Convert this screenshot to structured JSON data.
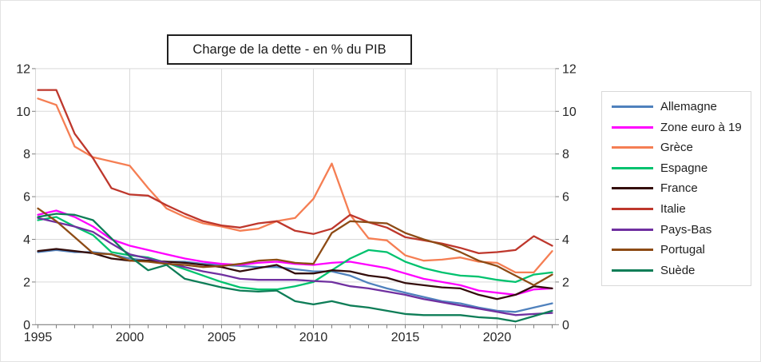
{
  "chart": {
    "title": "Charge de la dette - en % du PIB"
  },
  "chart_data": {
    "type": "line",
    "title": "Charge de la dette - en % du PIB",
    "x": [
      1995,
      1996,
      1997,
      1998,
      1999,
      2000,
      2001,
      2002,
      2003,
      2004,
      2005,
      2006,
      2007,
      2008,
      2009,
      2010,
      2011,
      2012,
      2013,
      2014,
      2015,
      2016,
      2017,
      2018,
      2019,
      2020,
      2021,
      2022,
      2023
    ],
    "x_tick_years": [
      1995,
      2000,
      2005,
      2010,
      2015,
      2020
    ],
    "x_tick_labels": [
      "1995",
      "2000",
      "2005",
      "2010",
      "2015",
      "2020"
    ],
    "ylim": [
      0,
      12
    ],
    "y_ticks": [
      0,
      2,
      4,
      6,
      8,
      10,
      12
    ],
    "y_tick_labels": [
      "0",
      "2",
      "4",
      "6",
      "8",
      "10",
      "12"
    ],
    "grid": true,
    "dual_y_axis": true,
    "legend_position": "right",
    "axis_color": "#7f7f7f",
    "grid_color": "#d9d9d9",
    "label_color": "#262626",
    "series": [
      {
        "name": "Allemagne",
        "color": "#4F81BD",
        "values": [
          3.4,
          3.5,
          3.4,
          3.4,
          3.3,
          3.1,
          3.0,
          2.95,
          2.95,
          2.85,
          2.8,
          2.75,
          2.7,
          2.7,
          2.6,
          2.5,
          2.5,
          2.3,
          1.95,
          1.7,
          1.5,
          1.3,
          1.1,
          1.0,
          0.8,
          0.65,
          0.6,
          0.8,
          1.0
        ]
      },
      {
        "name": "Zone euro à 19",
        "color": "#FF00FF",
        "values": [
          5.15,
          5.35,
          5.05,
          4.6,
          4.0,
          3.7,
          3.5,
          3.3,
          3.1,
          2.95,
          2.85,
          2.8,
          2.9,
          2.95,
          2.85,
          2.8,
          2.9,
          2.95,
          2.8,
          2.65,
          2.4,
          2.15,
          2.0,
          1.85,
          1.6,
          1.5,
          1.4,
          1.65,
          1.7
        ]
      },
      {
        "name": "Grèce",
        "color": "#F57E53",
        "values": [
          10.6,
          10.3,
          8.35,
          7.85,
          7.65,
          7.45,
          6.4,
          5.45,
          5.05,
          4.75,
          4.6,
          4.4,
          4.5,
          4.85,
          5.0,
          5.9,
          7.55,
          5.15,
          4.05,
          3.95,
          3.25,
          3.0,
          3.05,
          3.15,
          2.95,
          2.9,
          2.45,
          2.45,
          3.45
        ]
      },
      {
        "name": "Espagne",
        "color": "#00C26E",
        "values": [
          4.9,
          5.05,
          4.6,
          4.2,
          3.4,
          3.25,
          3.15,
          2.9,
          2.6,
          2.3,
          2.0,
          1.75,
          1.65,
          1.65,
          1.8,
          2.0,
          2.55,
          3.1,
          3.5,
          3.4,
          2.95,
          2.65,
          2.45,
          2.3,
          2.25,
          2.1,
          2.0,
          2.35,
          2.45
        ]
      },
      {
        "name": "France",
        "color": "#330D0B",
        "values": [
          3.45,
          3.55,
          3.45,
          3.35,
          3.1,
          3.0,
          3.0,
          2.95,
          2.9,
          2.8,
          2.7,
          2.5,
          2.65,
          2.8,
          2.4,
          2.4,
          2.55,
          2.5,
          2.3,
          2.2,
          1.95,
          1.85,
          1.75,
          1.7,
          1.4,
          1.2,
          1.4,
          1.8,
          1.7
        ]
      },
      {
        "name": "Italie",
        "color": "#BE372C",
        "values": [
          11.0,
          11.0,
          8.95,
          7.8,
          6.4,
          6.1,
          6.05,
          5.6,
          5.2,
          4.85,
          4.65,
          4.55,
          4.75,
          4.85,
          4.4,
          4.25,
          4.5,
          5.15,
          4.8,
          4.55,
          4.1,
          3.95,
          3.8,
          3.6,
          3.35,
          3.4,
          3.5,
          4.15,
          3.7
        ]
      },
      {
        "name": "Pays-Bas",
        "color": "#7030A0",
        "values": [
          5.0,
          4.8,
          4.6,
          4.35,
          3.8,
          3.3,
          3.1,
          2.9,
          2.7,
          2.5,
          2.35,
          2.15,
          2.1,
          2.1,
          2.1,
          2.05,
          2.0,
          1.8,
          1.7,
          1.55,
          1.4,
          1.2,
          1.05,
          0.9,
          0.75,
          0.6,
          0.45,
          0.5,
          0.55
        ]
      },
      {
        "name": "Portugal",
        "color": "#8D4B15",
        "values": [
          5.45,
          4.85,
          4.1,
          3.35,
          3.3,
          3.0,
          2.95,
          2.85,
          2.8,
          2.7,
          2.75,
          2.85,
          3.0,
          3.05,
          2.9,
          2.85,
          4.3,
          4.85,
          4.8,
          4.75,
          4.3,
          4.0,
          3.75,
          3.4,
          3.0,
          2.75,
          2.3,
          1.85,
          2.35
        ]
      },
      {
        "name": "Suède",
        "color": "#0E7D57",
        "values": [
          5.05,
          5.2,
          5.15,
          4.9,
          4.05,
          3.2,
          2.55,
          2.8,
          2.15,
          1.95,
          1.75,
          1.6,
          1.55,
          1.6,
          1.1,
          0.95,
          1.1,
          0.9,
          0.8,
          0.65,
          0.5,
          0.45,
          0.45,
          0.45,
          0.35,
          0.3,
          0.15,
          0.4,
          0.65
        ]
      }
    ]
  }
}
